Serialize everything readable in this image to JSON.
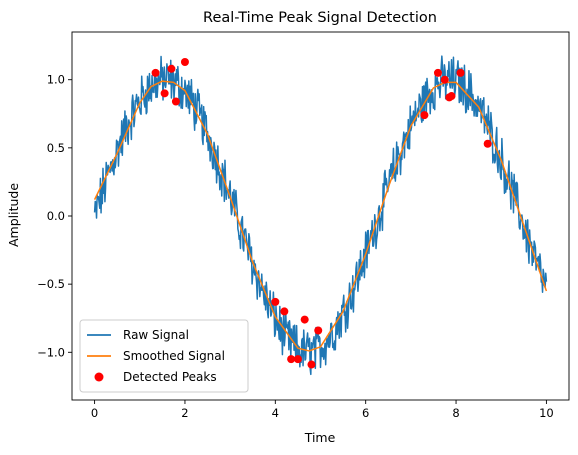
{
  "chart_data": {
    "type": "line",
    "title": "Real-Time Peak Signal Detection",
    "xlabel": "Time",
    "ylabel": "Amplitude",
    "xlim": [
      -0.5,
      10.5
    ],
    "ylim": [
      -1.35,
      1.35
    ],
    "xticks": [
      0,
      2,
      4,
      6,
      8,
      10
    ],
    "xtick_labels": [
      "0",
      "2",
      "4",
      "6",
      "8",
      "10"
    ],
    "yticks": [
      -1.0,
      -0.5,
      0.0,
      0.5,
      1.0
    ],
    "ytick_labels": [
      "−1.0",
      "−0.5",
      "0.0",
      "0.5",
      "1.0"
    ],
    "grid": false,
    "legend_position": "lower-left",
    "series": [
      {
        "name": "Raw Signal",
        "kind": "line",
        "color": "#1f77b4",
        "description_points": "sin(t) plus noise, noise amplitude about ±0.15, sampled over t in [0,10]",
        "x_range": [
          0,
          10
        ],
        "noise": 0.15
      },
      {
        "name": "Smoothed Signal",
        "kind": "line",
        "color": "#ff7f0e",
        "x": [
          0,
          0.5,
          1.0,
          1.25,
          1.5,
          1.75,
          2.0,
          2.5,
          3.0,
          3.5,
          4.0,
          4.5,
          4.75,
          5.0,
          5.5,
          6.0,
          6.5,
          7.0,
          7.5,
          7.75,
          8.0,
          8.5,
          9.0,
          9.5,
          10.0
        ],
        "y": [
          0.12,
          0.46,
          0.83,
          0.95,
          0.99,
          0.98,
          0.92,
          0.6,
          0.14,
          -0.34,
          -0.74,
          -0.97,
          -0.99,
          -0.96,
          -0.7,
          -0.28,
          0.21,
          0.66,
          0.94,
          0.98,
          0.98,
          0.8,
          0.41,
          -0.07,
          -0.55
        ]
      },
      {
        "name": "Detected Peaks",
        "kind": "scatter",
        "color": "#ff0000",
        "x": [
          1.35,
          1.55,
          1.7,
          1.8,
          2.0,
          4.0,
          4.2,
          4.35,
          4.5,
          4.65,
          4.8,
          4.95,
          7.3,
          7.6,
          7.75,
          7.85,
          7.9,
          8.1,
          8.7
        ],
        "y": [
          1.05,
          0.9,
          1.08,
          0.84,
          1.13,
          -0.63,
          -0.7,
          -1.05,
          -1.05,
          -0.76,
          -1.09,
          -0.84,
          0.74,
          1.05,
          1.0,
          0.87,
          0.88,
          1.05,
          0.53
        ]
      }
    ]
  }
}
